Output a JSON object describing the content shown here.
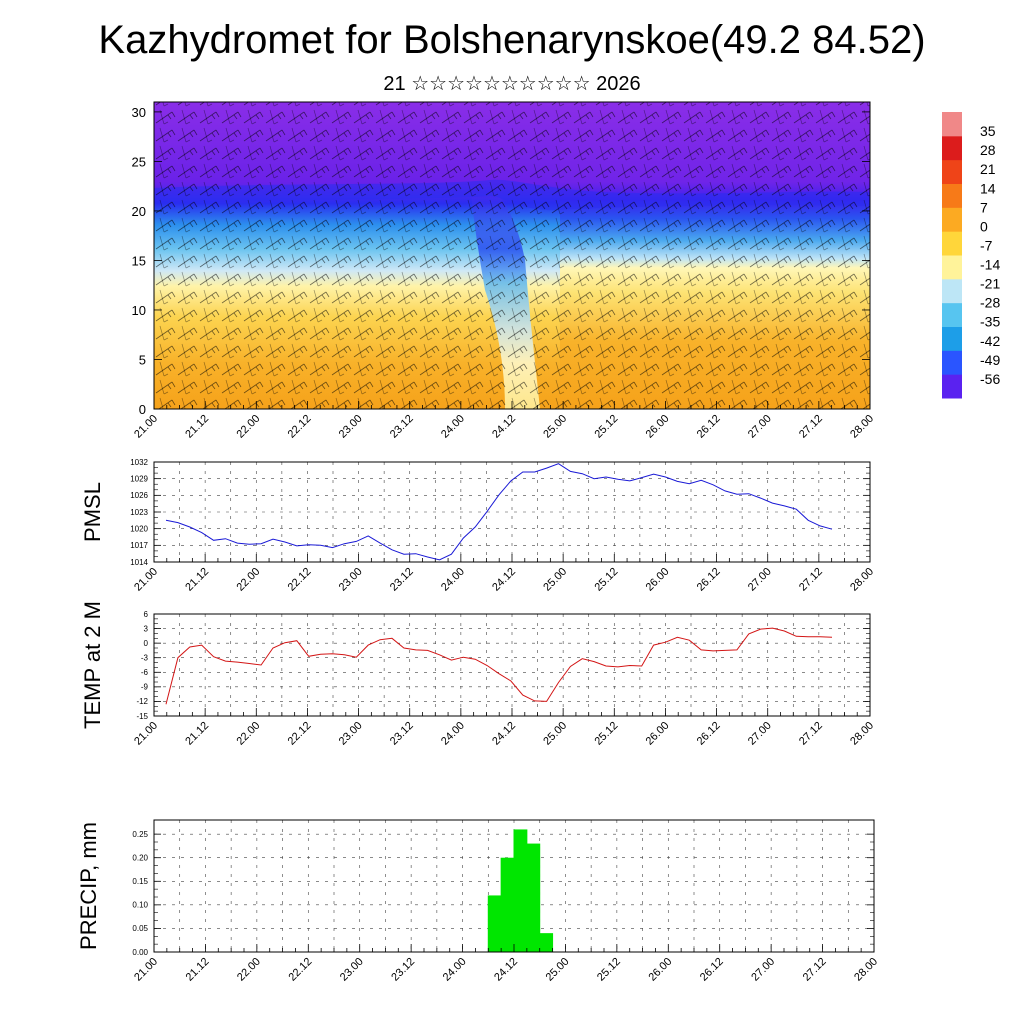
{
  "title": "Kazhydromet for Bolshenarynskoe(49.2 84.52)",
  "subtitle": "21 ☆☆☆☆☆☆☆☆☆☆ 2026",
  "time_labels": [
    "21.00",
    "21.12",
    "22.00",
    "22.12",
    "23.00",
    "23.12",
    "24.00",
    "24.12",
    "25.00",
    "25.12",
    "26.00",
    "26.12",
    "27.00",
    "27.12",
    "28.00"
  ],
  "chart_data": [
    {
      "type": "heatmap",
      "name": "vertical cross-section temperature and wind",
      "title": "",
      "xlabel": "",
      "ylabel": "",
      "x_tick_labels": [
        "21.00",
        "21.12",
        "22.00",
        "22.12",
        "23.00",
        "23.12",
        "24.00",
        "24.12",
        "25.00",
        "25.12",
        "26.00",
        "26.12",
        "27.00",
        "27.12",
        "28.00"
      ],
      "y_ticks": [
        0,
        5,
        10,
        15,
        20,
        25,
        30
      ],
      "ylim": [
        0,
        31
      ],
      "colorbar": {
        "levels": [
          35,
          28,
          21,
          14,
          7,
          0,
          -7,
          -14,
          -21,
          -28,
          -35,
          -42,
          -49,
          -56
        ],
        "range": [
          -63,
          42
        ],
        "colors": [
          "#5a22f0",
          "#2a55ff",
          "#1d9ee8",
          "#57c5f0",
          "#bde6f6",
          "#fff39a",
          "#ffd63a",
          "#fcaa22",
          "#f77a18",
          "#ef4418",
          "#dc1c1c",
          "#f08888"
        ]
      }
    },
    {
      "type": "line",
      "name": "PMSL",
      "ylabel": "PMSL",
      "xlabel": "",
      "ylim": [
        1014,
        1032
      ],
      "y_ticks": [
        1014,
        1017,
        1020,
        1023,
        1026,
        1029,
        1032
      ],
      "x_tick_labels": [
        "21.00",
        "21.12",
        "22.00",
        "22.12",
        "23.00",
        "23.12",
        "24.00",
        "24.12",
        "25.00",
        "25.12",
        "26.00",
        "26.12",
        "27.00",
        "27.12",
        "28.00"
      ],
      "color": "#1a1ad6",
      "values": [
        1021.5,
        1021.1,
        1020.3,
        1019.3,
        1017.9,
        1018.2,
        1017.4,
        1017.2,
        1017.3,
        1018.1,
        1017.6,
        1016.9,
        1017.1,
        1017.0,
        1016.6,
        1017.3,
        1017.7,
        1018.7,
        1017.4,
        1016.2,
        1015.4,
        1015.5,
        1014.9,
        1014.4,
        1015.4,
        1018.3,
        1020.3,
        1023.1,
        1026.1,
        1028.6,
        1030.2,
        1030.2,
        1030.9,
        1031.7,
        1030.3,
        1029.9,
        1029.0,
        1029.3,
        1028.9,
        1028.6,
        1029.2,
        1029.8,
        1029.3,
        1028.5,
        1028.1,
        1028.7,
        1027.9,
        1026.8,
        1026.2,
        1026.3,
        1025.5,
        1024.6,
        1024.1,
        1023.5,
        1021.5,
        1020.5,
        1019.9
      ]
    },
    {
      "type": "line",
      "name": "TEMP at 2 M",
      "ylabel": "TEMP at 2 M",
      "xlabel": "",
      "ylim": [
        -15,
        6
      ],
      "y_ticks": [
        -15,
        -12,
        -9,
        -6,
        -3,
        0,
        3,
        6
      ],
      "x_tick_labels": [
        "21.00",
        "21.12",
        "22.00",
        "22.12",
        "23.00",
        "23.12",
        "24.00",
        "24.12",
        "25.00",
        "25.12",
        "26.00",
        "26.12",
        "27.00",
        "27.12",
        "28.00"
      ],
      "color": "#d31515",
      "values": [
        -12.6,
        -3.0,
        -0.8,
        -0.4,
        -2.8,
        -3.7,
        -3.9,
        -4.2,
        -4.5,
        -1.0,
        0.1,
        0.5,
        -2.7,
        -2.3,
        -2.2,
        -2.4,
        -2.9,
        -0.4,
        0.7,
        1.0,
        -1.0,
        -1.4,
        -1.5,
        -2.4,
        -3.5,
        -2.9,
        -3.3,
        -4.6,
        -6.3,
        -7.8,
        -10.7,
        -11.9,
        -12.0,
        -8.1,
        -4.8,
        -3.2,
        -3.8,
        -4.7,
        -4.9,
        -4.6,
        -4.7,
        -0.4,
        0.2,
        1.2,
        0.6,
        -1.4,
        -1.6,
        -1.5,
        -1.4,
        1.9,
        2.9,
        3.1,
        2.5,
        1.4,
        1.3,
        1.3,
        1.2
      ]
    },
    {
      "type": "bar",
      "name": "PRECIP, mm",
      "ylabel": "PRECIP, mm",
      "xlabel": "",
      "ylim": [
        0,
        0.28
      ],
      "y_ticks": [
        0.0,
        0.05,
        0.1,
        0.15,
        0.2,
        0.25
      ],
      "y_tick_labels": [
        "0.00",
        "0.05",
        "0.10",
        "0.15",
        "0.20",
        "0.25"
      ],
      "x_tick_labels": [
        "21.00",
        "21.12",
        "22.00",
        "22.12",
        "23.00",
        "23.12",
        "24.00",
        "24.12",
        "25.00",
        "25.12",
        "26.00",
        "26.12",
        "27.00",
        "27.12",
        "28.00"
      ],
      "color": "#00e600",
      "x": [
        26,
        27,
        28,
        29,
        30
      ],
      "values": [
        0.12,
        0.2,
        0.26,
        0.23,
        0.04
      ]
    }
  ]
}
